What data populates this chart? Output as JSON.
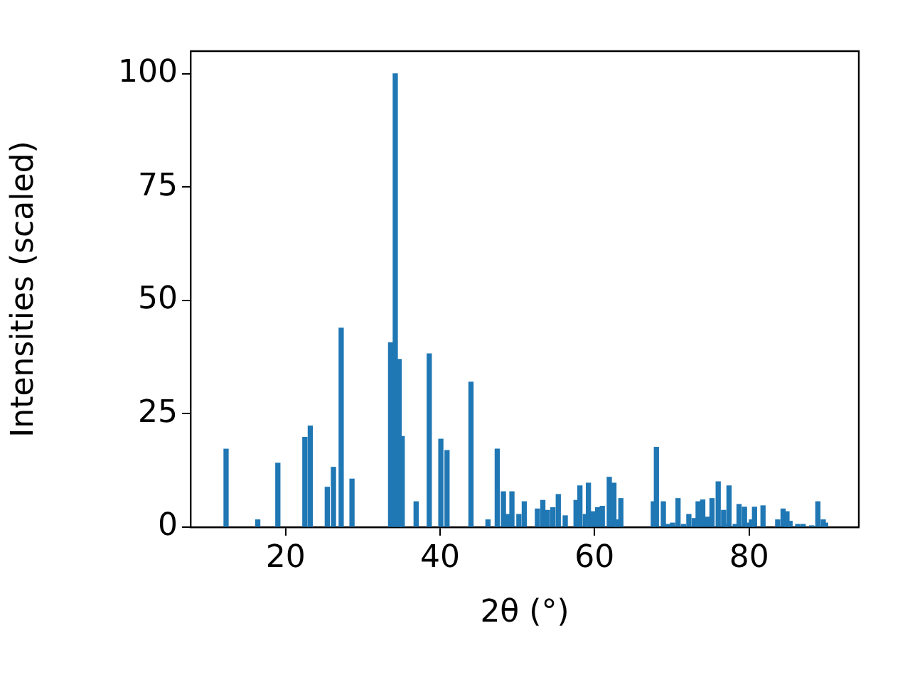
{
  "chart_data": {
    "type": "bar",
    "xlabel": "2θ (°)",
    "ylabel": "Intensities (scaled)",
    "color": "#1f77b4",
    "x": [
      12.3,
      16.4,
      19.0,
      22.5,
      23.2,
      25.4,
      26.2,
      27.2,
      28.6,
      33.6,
      34.2,
      34.7,
      35.1,
      36.9,
      38.6,
      40.1,
      40.9,
      44.0,
      46.2,
      47.4,
      48.2,
      48.7,
      49.3,
      50.2,
      50.9,
      52.6,
      53.3,
      53.9,
      54.6,
      55.3,
      56.2,
      57.6,
      58.1,
      58.8,
      59.2,
      59.8,
      60.4,
      61.0,
      61.9,
      62.5,
      62.9,
      63.4,
      67.6,
      68.0,
      68.9,
      69.5,
      70.1,
      70.8,
      71.5,
      72.2,
      72.9,
      73.4,
      74.0,
      74.6,
      75.2,
      76.0,
      76.7,
      77.0,
      77.4,
      78.2,
      78.7,
      79.4,
      79.8,
      80.3,
      80.7,
      81.8,
      83.7,
      84.4,
      84.9,
      85.3,
      86.3,
      87.0,
      88.1,
      88.9,
      89.6,
      89.9
    ],
    "values": [
      17.2,
      1.6,
      14.1,
      19.8,
      22.3,
      8.8,
      13.2,
      43.9,
      10.6,
      40.7,
      100,
      37,
      20,
      5.6,
      38.2,
      19.4,
      16.9,
      32,
      1.6,
      17.2,
      7.8,
      2.8,
      7.8,
      2.8,
      5.6,
      4.0,
      5.9,
      3.7,
      4.3,
      7.2,
      2.5,
      5.9,
      9.1,
      2.8,
      9.7,
      3.4,
      4.3,
      4.6,
      11.0,
      9.7,
      1.6,
      6.3,
      5.6,
      17.6,
      5.6,
      0.6,
      0.9,
      6.3,
      0.6,
      2.8,
      1.9,
      5.6,
      6.0,
      2.2,
      6.3,
      10.0,
      3.7,
      0.6,
      9.1,
      0.6,
      5.0,
      4.4,
      0.9,
      1.6,
      4.4,
      4.7,
      1.6,
      4.0,
      3.4,
      1.3,
      0.6,
      0.6,
      0.3,
      5.6,
      1.6,
      0.9
    ],
    "xlim": [
      7.7,
      94.2
    ],
    "xticks": [
      20,
      40,
      60,
      80
    ],
    "ylim": [
      0,
      105
    ],
    "yticks": [
      0,
      25,
      50,
      75,
      100
    ],
    "grid": false,
    "legend": false
  }
}
